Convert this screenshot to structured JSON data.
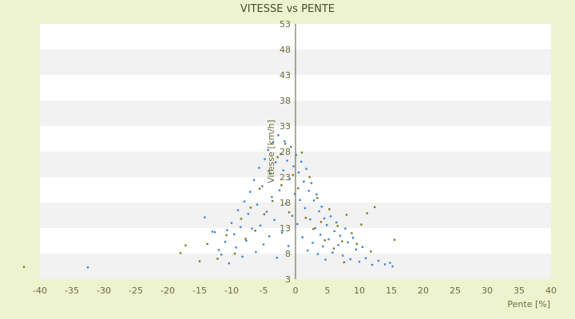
{
  "chart_data": {
    "type": "scatter",
    "title": "VITESSE vs PENTE",
    "xlabel": "Pente [%]",
    "ylabel": "Vitesse [km/h]",
    "xlim": [
      -40,
      40
    ],
    "ylim": [
      3,
      53
    ],
    "xticks": [
      "-40",
      "-35",
      "-30",
      "-25",
      "-20",
      "-15",
      "-10",
      "-5",
      "0",
      "5",
      "10",
      "15",
      "20",
      "25",
      "30",
      "35",
      "40"
    ],
    "yticks": [
      "3",
      "8",
      "13",
      "18",
      "23",
      "28",
      "33",
      "38",
      "43",
      "48",
      "53"
    ],
    "grid": "alternating horizontal bands",
    "legend": "none",
    "series": [
      {
        "color": "#3a87d6",
        "points": [
          [
            -32.5,
            5.3
          ],
          [
            -14.2,
            15.1
          ],
          [
            -13.0,
            12.3
          ],
          [
            -12.6,
            12.2
          ],
          [
            -12.0,
            8.7
          ],
          [
            -11.6,
            7.8
          ],
          [
            -11.0,
            10.3
          ],
          [
            -10.7,
            12.6
          ],
          [
            -10.4,
            6.1
          ],
          [
            -10.0,
            14.0
          ],
          [
            -9.6,
            11.8
          ],
          [
            -9.3,
            9.2
          ],
          [
            -9.0,
            16.5
          ],
          [
            -8.6,
            13.2
          ],
          [
            -8.3,
            7.4
          ],
          [
            -8.0,
            18.2
          ],
          [
            -7.7,
            10.5
          ],
          [
            -7.4,
            15.8
          ],
          [
            -7.1,
            20.1
          ],
          [
            -6.8,
            12.9
          ],
          [
            -6.5,
            22.4
          ],
          [
            -6.2,
            8.3
          ],
          [
            -6.0,
            17.6
          ],
          [
            -5.7,
            24.8
          ],
          [
            -5.5,
            13.5
          ],
          [
            -5.2,
            21.2
          ],
          [
            -5.0,
            9.8
          ],
          [
            -4.8,
            26.5
          ],
          [
            -4.5,
            16.2
          ],
          [
            -4.3,
            28.3
          ],
          [
            -4.1,
            11.4
          ],
          [
            -3.9,
            23.7
          ],
          [
            -3.7,
            19.1
          ],
          [
            -3.5,
            29.8
          ],
          [
            -3.3,
            14.6
          ],
          [
            -3.1,
            25.9
          ],
          [
            -2.9,
            7.2
          ],
          [
            -2.7,
            31.2
          ],
          [
            -2.5,
            20.4
          ],
          [
            -2.3,
            27.5
          ],
          [
            -2.1,
            12.1
          ],
          [
            -1.9,
            24.3
          ],
          [
            -1.7,
            30.0
          ],
          [
            -1.5,
            17.8
          ],
          [
            -1.3,
            26.2
          ],
          [
            -1.1,
            9.5
          ],
          [
            -0.9,
            22.6
          ],
          [
            -0.7,
            28.9
          ],
          [
            -0.5,
            15.4
          ],
          [
            -0.3,
            25.1
          ],
          [
            -0.1,
            19.7
          ],
          [
            0.1,
            27.3
          ],
          [
            0.3,
            13.8
          ],
          [
            0.5,
            23.9
          ],
          [
            0.7,
            18.5
          ],
          [
            0.9,
            26.0
          ],
          [
            1.1,
            11.2
          ],
          [
            1.3,
            22.1
          ],
          [
            1.5,
            16.9
          ],
          [
            1.7,
            24.6
          ],
          [
            1.9,
            8.6
          ],
          [
            2.1,
            20.3
          ],
          [
            2.3,
            14.7
          ],
          [
            2.5,
            21.8
          ],
          [
            2.7,
            10.1
          ],
          [
            2.9,
            18.4
          ],
          [
            3.1,
            13.0
          ],
          [
            3.3,
            19.6
          ],
          [
            3.5,
            7.9
          ],
          [
            3.7,
            16.3
          ],
          [
            3.9,
            11.7
          ],
          [
            4.1,
            17.2
          ],
          [
            4.3,
            9.4
          ],
          [
            4.5,
            14.9
          ],
          [
            4.7,
            6.8
          ],
          [
            4.9,
            13.6
          ],
          [
            5.2,
            10.8
          ],
          [
            5.5,
            15.3
          ],
          [
            5.8,
            8.2
          ],
          [
            6.1,
            12.4
          ],
          [
            6.4,
            14.1
          ],
          [
            6.7,
            9.7
          ],
          [
            7.0,
            11.5
          ],
          [
            7.4,
            7.6
          ],
          [
            7.8,
            12.9
          ],
          [
            8.2,
            10.2
          ],
          [
            8.6,
            6.9
          ],
          [
            9.0,
            11.1
          ],
          [
            9.5,
            8.8
          ],
          [
            10.0,
            6.4
          ],
          [
            10.5,
            9.3
          ],
          [
            11.0,
            7.1
          ],
          [
            12.0,
            5.8
          ],
          [
            13.0,
            6.6
          ],
          [
            14.0,
            5.9
          ],
          [
            15.2,
            5.5
          ],
          [
            14.8,
            6.2
          ]
        ]
      },
      {
        "color": "#7a7a1f",
        "points": [
          [
            -42.5,
            5.4
          ],
          [
            -18.0,
            8.1
          ],
          [
            -17.2,
            9.6
          ],
          [
            -15.0,
            6.5
          ],
          [
            -13.8,
            9.9
          ],
          [
            -12.2,
            7.0
          ],
          [
            -10.8,
            11.6
          ],
          [
            -9.5,
            8.0
          ],
          [
            -8.5,
            14.8
          ],
          [
            -7.8,
            10.9
          ],
          [
            -7.0,
            17.0
          ],
          [
            -6.3,
            12.5
          ],
          [
            -5.6,
            20.7
          ],
          [
            -4.9,
            15.7
          ],
          [
            -4.2,
            24.2
          ],
          [
            -3.6,
            18.3
          ],
          [
            -2.8,
            26.9
          ],
          [
            -2.2,
            21.4
          ],
          [
            -1.6,
            29.5
          ],
          [
            -1.0,
            16.1
          ],
          [
            -0.4,
            23.4
          ],
          [
            0.4,
            20.8
          ],
          [
            1.0,
            27.8
          ],
          [
            1.6,
            15.0
          ],
          [
            2.2,
            23.0
          ],
          [
            2.8,
            12.8
          ],
          [
            3.4,
            18.9
          ],
          [
            4.0,
            14.2
          ],
          [
            4.6,
            10.6
          ],
          [
            5.3,
            16.7
          ],
          [
            6.0,
            9.0
          ],
          [
            6.6,
            13.4
          ],
          [
            7.3,
            10.4
          ],
          [
            8.0,
            15.6
          ],
          [
            8.8,
            12.0
          ],
          [
            9.6,
            9.9
          ],
          [
            10.3,
            13.7
          ],
          [
            11.2,
            15.9
          ],
          [
            12.4,
            17.1
          ],
          [
            15.5,
            10.7
          ],
          [
            11.8,
            8.4
          ],
          [
            7.6,
            6.3
          ]
        ]
      }
    ]
  }
}
